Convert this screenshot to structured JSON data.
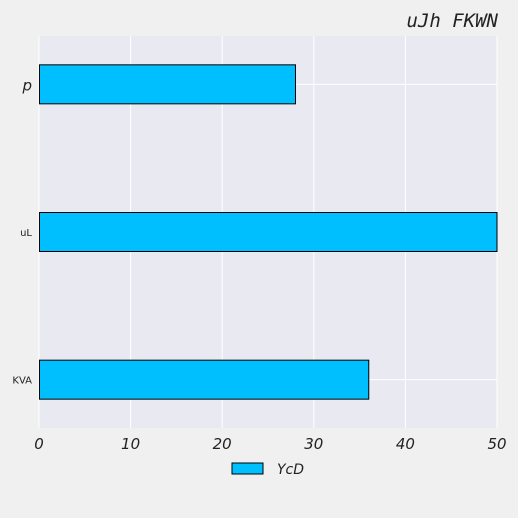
{
  "chart_data": {
    "type": "bar",
    "orientation": "horizontal",
    "title": "uJh FKWN",
    "categories": [
      "p",
      "uL",
      "KVA"
    ],
    "series": [
      {
        "name": "YcD",
        "values": [
          28,
          50,
          36
        ],
        "color": "#00bfff"
      }
    ],
    "xlim": [
      0,
      50
    ],
    "x_ticks": [
      0,
      10,
      20,
      30,
      40,
      50
    ],
    "grid": true,
    "legend_position": "bottom-center"
  },
  "colors": {
    "plot_background": "#e9e9f1",
    "page_background": "#f0f0f0",
    "grid": "#ffffff",
    "bar_edge": "#000000",
    "text": "#222222"
  }
}
